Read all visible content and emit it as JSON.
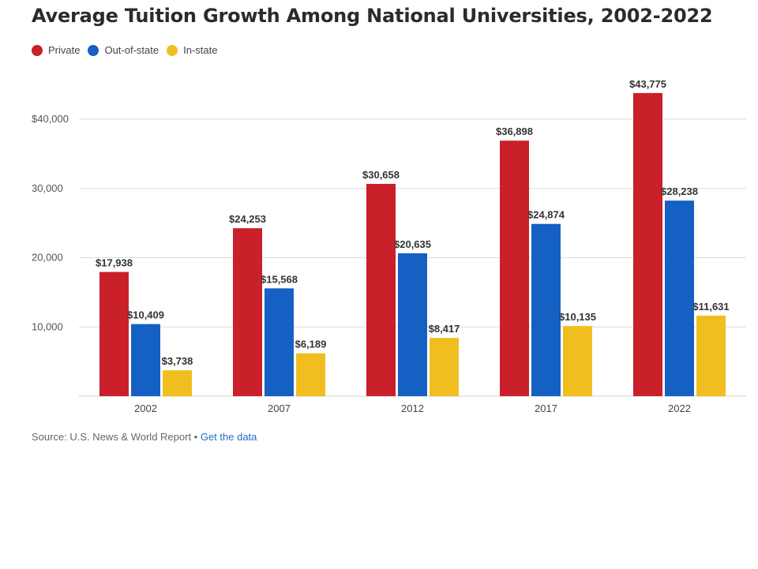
{
  "title": "Average Tuition Growth Among National Universities, 2002-2022",
  "source": {
    "text": "Source: U.S. News & World Report",
    "separator": " • ",
    "link_label": "Get the data"
  },
  "chart_data": {
    "type": "bar",
    "title": "Average Tuition Growth Among National Universities, 2002-2022",
    "categories": [
      "2002",
      "2007",
      "2012",
      "2017",
      "2022"
    ],
    "series": [
      {
        "name": "Private",
        "color": "#c9202a",
        "values": [
          17938,
          24253,
          30658,
          36898,
          43775
        ],
        "labels": [
          "$17,938",
          "$24,253",
          "$30,658",
          "$36,898",
          "$43,775"
        ]
      },
      {
        "name": "Out-of-state",
        "color": "#1460c3",
        "values": [
          10409,
          15568,
          20635,
          24874,
          28238
        ],
        "labels": [
          "$10,409",
          "$15,568",
          "$20,635",
          "$24,874",
          "$28,238"
        ]
      },
      {
        "name": "In-state",
        "color": "#f0bf1f",
        "values": [
          3738,
          6189,
          8417,
          10135,
          11631
        ],
        "labels": [
          "$3,738",
          "$6,189",
          "$8,417",
          "$10,135",
          "$11,631"
        ]
      }
    ],
    "yticks": [
      {
        "value": 10000,
        "label": "10,000"
      },
      {
        "value": 20000,
        "label": "20,000"
      },
      {
        "value": 30000,
        "label": "30,000"
      },
      {
        "value": 40000,
        "label": "$40,000"
      }
    ],
    "ylim": [
      0,
      45000
    ],
    "grid": true,
    "legend": "top-left"
  }
}
